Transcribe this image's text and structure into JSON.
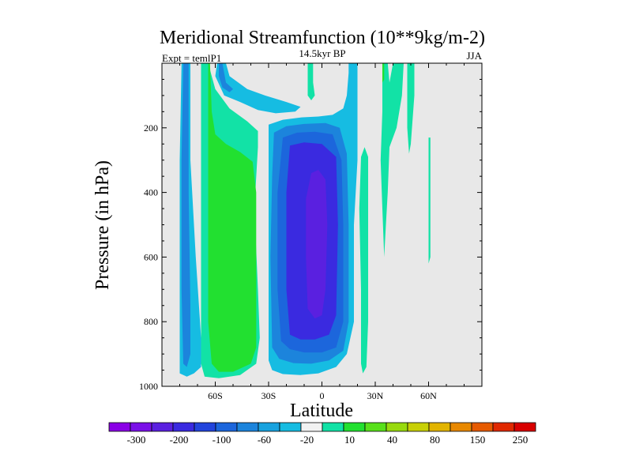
{
  "chart_data": {
    "type": "heatmap",
    "title": "Meridional Streamfunction (10**9kg/m-2)",
    "subtitle_left": "Expt = temlP1",
    "subtitle_center": "14.5kyr BP",
    "subtitle_right": "JJA",
    "xlabel": "Latitude",
    "ylabel": "Pressure (in hPa)",
    "xlim": [
      -90,
      90
    ],
    "ylim": [
      1000,
      0
    ],
    "x_ticks": [
      {
        "value": -60,
        "label": "60S"
      },
      {
        "value": -30,
        "label": "30S"
      },
      {
        "value": 0,
        "label": "0"
      },
      {
        "value": 30,
        "label": "30N"
      },
      {
        "value": 60,
        "label": "60N"
      }
    ],
    "y_ticks": [
      {
        "value": 200,
        "label": "200"
      },
      {
        "value": 400,
        "label": "400"
      },
      {
        "value": 600,
        "label": "600"
      },
      {
        "value": 800,
        "label": "800"
      },
      {
        "value": 1000,
        "label": "1000"
      }
    ],
    "background_color": "#e8e8e8",
    "colorbar": {
      "colors": [
        "#8a00e6",
        "#7a10e8",
        "#5a20e0",
        "#3a2ae0",
        "#2244dc",
        "#1c66dc",
        "#1c84dc",
        "#18a2de",
        "#16bce2",
        "#f2f2f2",
        "#12e2a6",
        "#22e030",
        "#58e01a",
        "#98da0e",
        "#c8d006",
        "#e2b400",
        "#e88800",
        "#e65a00",
        "#e02800",
        "#d80000"
      ],
      "labels": [
        {
          "after_index": 1,
          "label": "-300"
        },
        {
          "after_index": 3,
          "label": "-200"
        },
        {
          "after_index": 5,
          "label": "-100"
        },
        {
          "after_index": 7,
          "label": "-60"
        },
        {
          "after_index": 9,
          "label": "-20"
        },
        {
          "after_index": 11,
          "label": "10"
        },
        {
          "after_index": 13,
          "label": "40"
        },
        {
          "after_index": 15,
          "label": "80"
        },
        {
          "after_index": 17,
          "label": "150"
        },
        {
          "after_index": 19,
          "label": "250"
        }
      ]
    },
    "contour_regions": [
      {
        "name": "sh-polar-cell-outer",
        "level": -20,
        "color": "#16bce2",
        "points": [
          [
            -79,
            0
          ],
          [
            -74,
            0
          ],
          [
            -74,
            300
          ],
          [
            -71,
            600
          ],
          [
            -68,
            850
          ],
          [
            -68,
            940
          ],
          [
            -72,
            960
          ],
          [
            -76,
            970
          ],
          [
            -80,
            960
          ],
          [
            -80,
            700
          ],
          [
            -80,
            300
          ]
        ]
      },
      {
        "name": "sh-polar-cell-inner",
        "level": -60,
        "color": "#1c84dc",
        "points": [
          [
            -78,
            0
          ],
          [
            -75,
            0
          ],
          [
            -75,
            400
          ],
          [
            -74,
            750
          ],
          [
            -74,
            900
          ],
          [
            -76,
            940
          ],
          [
            -78,
            930
          ],
          [
            -79,
            700
          ],
          [
            -79,
            300
          ]
        ]
      },
      {
        "name": "sh-ferrel-cell-outer",
        "level": 10,
        "color": "#12e2a6",
        "points": [
          [
            -68,
            0
          ],
          [
            -64,
            0
          ],
          [
            -60,
            80
          ],
          [
            -52,
            140
          ],
          [
            -42,
            180
          ],
          [
            -36,
            210
          ],
          [
            -36,
            260
          ],
          [
            -38,
            450
          ],
          [
            -36,
            700
          ],
          [
            -35,
            850
          ],
          [
            -37,
            930
          ],
          [
            -46,
            965
          ],
          [
            -58,
            975
          ],
          [
            -66,
            970
          ],
          [
            -68,
            930
          ],
          [
            -68,
            500
          ]
        ]
      },
      {
        "name": "sh-ferrel-cell-inner",
        "level": 40,
        "color": "#22e030",
        "points": [
          [
            -64,
            0
          ],
          [
            -63,
            0
          ],
          [
            -62,
            150
          ],
          [
            -60,
            220
          ],
          [
            -54,
            250
          ],
          [
            -46,
            275
          ],
          [
            -39,
            305
          ],
          [
            -37,
            400
          ],
          [
            -37,
            700
          ],
          [
            -37,
            880
          ],
          [
            -40,
            930
          ],
          [
            -50,
            955
          ],
          [
            -58,
            955
          ],
          [
            -62,
            930
          ],
          [
            -64,
            800
          ],
          [
            -64,
            400
          ]
        ]
      },
      {
        "name": "sh-upper-strip-outer",
        "level": -20,
        "color": "#16bce2",
        "points": [
          [
            -59,
            0
          ],
          [
            -54,
            0
          ],
          [
            -52,
            40
          ],
          [
            -42,
            80
          ],
          [
            -32,
            100
          ],
          [
            -20,
            120
          ],
          [
            -12,
            135
          ],
          [
            -15,
            150
          ],
          [
            -26,
            155
          ],
          [
            -36,
            145
          ],
          [
            -46,
            120
          ],
          [
            -55,
            100
          ],
          [
            -60,
            40
          ]
        ]
      },
      {
        "name": "sh-upper-strip-inner",
        "level": -60,
        "color": "#1c84dc",
        "points": [
          [
            -58,
            0
          ],
          [
            -56,
            0
          ],
          [
            -54,
            60
          ],
          [
            -50,
            80
          ],
          [
            -52,
            90
          ],
          [
            -56,
            75
          ],
          [
            -58,
            40
          ]
        ]
      },
      {
        "name": "hadley-cell-level-1",
        "level": -20,
        "color": "#16bce2",
        "points": [
          [
            -30,
            190
          ],
          [
            -22,
            175
          ],
          [
            -12,
            168
          ],
          [
            -2,
            165
          ],
          [
            6,
            160
          ],
          [
            12,
            140
          ],
          [
            14,
            100
          ],
          [
            15,
            30
          ],
          [
            15,
            0
          ],
          [
            20,
            0
          ],
          [
            20,
            300
          ],
          [
            18,
            500
          ],
          [
            18,
            800
          ],
          [
            14,
            900
          ],
          [
            8,
            940
          ],
          [
            -2,
            960
          ],
          [
            -12,
            965
          ],
          [
            -22,
            962
          ],
          [
            -28,
            950
          ],
          [
            -30,
            920
          ],
          [
            -30,
            600
          ],
          [
            -30,
            300
          ]
        ]
      },
      {
        "name": "hadley-cell-level-2",
        "level": -60,
        "color": "#1c84dc",
        "points": [
          [
            -27,
            215
          ],
          [
            -20,
            195
          ],
          [
            -10,
            188
          ],
          [
            2,
            185
          ],
          [
            10,
            200
          ],
          [
            14,
            280
          ],
          [
            15,
            500
          ],
          [
            15,
            800
          ],
          [
            12,
            890
          ],
          [
            4,
            920
          ],
          [
            -6,
            930
          ],
          [
            -16,
            928
          ],
          [
            -24,
            915
          ],
          [
            -28,
            880
          ],
          [
            -29,
            600
          ],
          [
            -28,
            350
          ]
        ]
      },
      {
        "name": "hadley-cell-level-3",
        "level": -100,
        "color": "#1c66dc",
        "points": [
          [
            -22,
            230
          ],
          [
            -14,
            215
          ],
          [
            -4,
            212
          ],
          [
            6,
            220
          ],
          [
            11,
            300
          ],
          [
            12,
            500
          ],
          [
            12,
            800
          ],
          [
            8,
            880
          ],
          [
            0,
            895
          ],
          [
            -10,
            895
          ],
          [
            -18,
            885
          ],
          [
            -23,
            860
          ],
          [
            -25,
            700
          ],
          [
            -25,
            400
          ]
        ]
      },
      {
        "name": "hadley-cell-level-4",
        "level": -200,
        "color": "#3a2ae0",
        "points": [
          [
            -18,
            255
          ],
          [
            -10,
            245
          ],
          [
            0,
            250
          ],
          [
            8,
            290
          ],
          [
            9,
            500
          ],
          [
            8,
            780
          ],
          [
            4,
            840
          ],
          [
            -4,
            855
          ],
          [
            -12,
            855
          ],
          [
            -18,
            840
          ],
          [
            -20,
            700
          ],
          [
            -20,
            400
          ]
        ]
      },
      {
        "name": "hadley-cell-level-5",
        "level": -300,
        "color": "#5a20e0",
        "points": [
          [
            -6,
            340
          ],
          [
            -2,
            330
          ],
          [
            2,
            360
          ],
          [
            3,
            500
          ],
          [
            2,
            700
          ],
          [
            0,
            780
          ],
          [
            -4,
            790
          ],
          [
            -8,
            760
          ],
          [
            -9,
            600
          ],
          [
            -9,
            420
          ]
        ]
      },
      {
        "name": "equatorial-upper-tongue",
        "level": 10,
        "color": "#12e2a6",
        "points": [
          [
            -8,
            0
          ],
          [
            -5,
            0
          ],
          [
            -5,
            60
          ],
          [
            -4,
            100
          ],
          [
            -6,
            115
          ],
          [
            -8,
            100
          ]
        ]
      },
      {
        "name": "nh-cell-1",
        "level": 10,
        "color": "#12e2a6",
        "points": [
          [
            22,
            290
          ],
          [
            24,
            260
          ],
          [
            26,
            290
          ],
          [
            26,
            500
          ],
          [
            26,
            800
          ],
          [
            25,
            940
          ],
          [
            23,
            960
          ],
          [
            22,
            930
          ],
          [
            22,
            700
          ],
          [
            21,
            450
          ]
        ]
      },
      {
        "name": "nh-cell-2-outer",
        "level": 10,
        "color": "#12e2a6",
        "points": [
          [
            34,
            0
          ],
          [
            37,
            0
          ],
          [
            38,
            60
          ],
          [
            40,
            0
          ],
          [
            46,
            0
          ],
          [
            45,
            100
          ],
          [
            42,
            200
          ],
          [
            38,
            260
          ],
          [
            37,
            400
          ],
          [
            36,
            500
          ],
          [
            35,
            600
          ],
          [
            34,
            450
          ],
          [
            33,
            300
          ],
          [
            34,
            150
          ]
        ]
      },
      {
        "name": "nh-cell-2-inner",
        "level": 40,
        "color": "#22e030",
        "points": [
          [
            34,
            0
          ],
          [
            35,
            0
          ],
          [
            35,
            50
          ],
          [
            34,
            60
          ]
        ]
      },
      {
        "name": "nh-cell-3",
        "level": 10,
        "color": "#12e2a6",
        "points": [
          [
            48,
            0
          ],
          [
            52,
            0
          ],
          [
            52,
            100
          ],
          [
            50,
            250
          ],
          [
            49,
            280
          ],
          [
            48,
            200
          ]
        ]
      },
      {
        "name": "nh-cell-4",
        "level": 10,
        "color": "#12e2a6",
        "points": [
          [
            60,
            230
          ],
          [
            61,
            230
          ],
          [
            61,
            600
          ],
          [
            60,
            620
          ]
        ]
      }
    ]
  }
}
